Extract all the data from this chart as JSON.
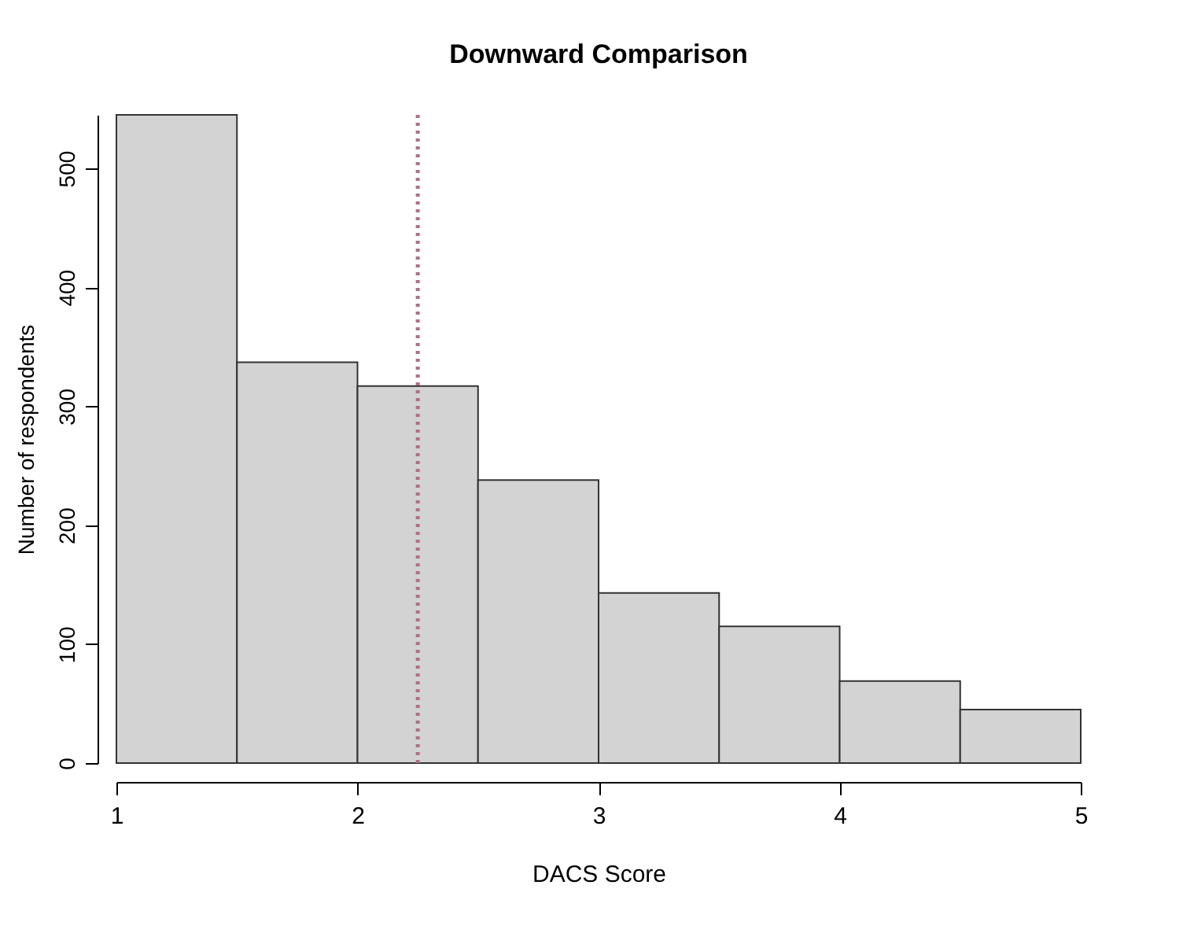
{
  "chart_data": {
    "type": "histogram",
    "title": "Downward Comparison",
    "xlabel": "DACS Score",
    "ylabel": "Number of respondents",
    "bins": [
      1,
      1.5,
      2,
      2.5,
      3,
      3.5,
      4,
      4.5,
      5
    ],
    "values": [
      545,
      337,
      317,
      238,
      143,
      115,
      69,
      45
    ],
    "color": "#d3d3d3",
    "xlim": [
      1,
      5
    ],
    "xticks": [
      1,
      2,
      3,
      4,
      5
    ],
    "ylim": [
      0,
      545
    ],
    "yticks": [
      0,
      100,
      200,
      300,
      400,
      500
    ],
    "ref_lines": [
      {
        "axis": "x",
        "value": 2.25,
        "color": "#b07080",
        "line_style": "dotted"
      }
    ],
    "grid": false
  }
}
